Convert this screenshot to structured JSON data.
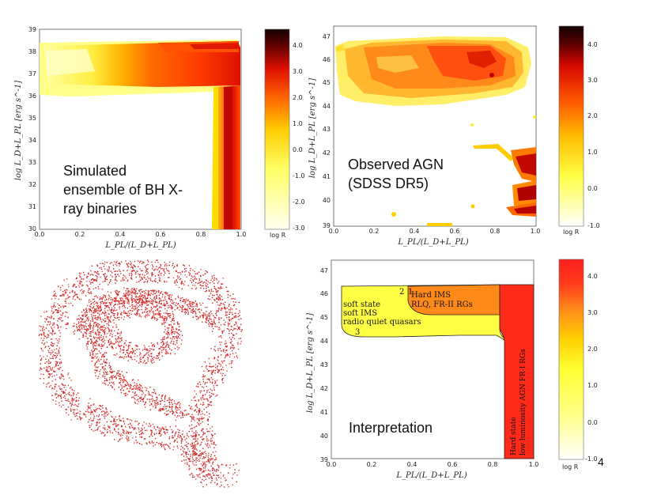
{
  "panels": {
    "top_left": {
      "annotation": [
        "Simulated",
        "ensemble of BH X-",
        "ray binaries"
      ],
      "xlabel": "L_PL/(L_D+L_PL)",
      "ylabel": "log L_D+L_PL [erg s^-1]",
      "colorbar_label": "log R"
    },
    "top_right": {
      "annotation": [
        "Observed AGN",
        "(SDSS DR5)"
      ],
      "xlabel": "L_PL/(L_D+L_PL)",
      "ylabel": "log L_D+L_PL [erg s^-1]",
      "colorbar_label": "log R"
    },
    "bottom_right": {
      "annotation": "Interpretation",
      "region_labels": {
        "hard": [
          "Hard IMS",
          "RLQ, FR-II RGs"
        ],
        "soft": [
          "soft state",
          "soft IMS",
          "radio quiet quasars"
        ],
        "vertical": [
          "Hard state",
          "low luminosity AGN FR-I RGs"
        ],
        "markers": [
          "2",
          "1",
          "3"
        ]
      },
      "xlabel": "L_PL/(L_D+L_PL)",
      "ylabel": "log L_D+L_PL [erg s^-1]",
      "colorbar_label": "log R"
    },
    "page_number": "4"
  },
  "chart_data": [
    {
      "type": "heatmap",
      "name": "top_left",
      "x_ticks": [
        "0.0",
        "0.2",
        "0.4",
        "0.6",
        "0.8",
        "1.0"
      ],
      "y_ticks": [
        "30",
        "31",
        "32",
        "33",
        "34",
        "35",
        "36",
        "37",
        "38",
        "39"
      ],
      "xlim": [
        0,
        1
      ],
      "ylim": [
        30,
        39
      ],
      "colorbar_ticks": [
        "4.0",
        "3.0",
        "2.0",
        "1.0",
        "0.0",
        "-1.0",
        "-2.0",
        "-3.0"
      ],
      "colorbar_range": [
        -3.0,
        4.5
      ],
      "colors": {
        "low": "#ffffe0",
        "mid": "#ffee00",
        "high": "#ff2200",
        "max": "#1a0000"
      }
    },
    {
      "type": "heatmap",
      "name": "top_right",
      "x_ticks": [
        "0.0",
        "0.2",
        "0.4",
        "0.6",
        "0.8",
        "1.0"
      ],
      "y_ticks": [
        "39",
        "40",
        "41",
        "42",
        "43",
        "44",
        "45",
        "46",
        "47"
      ],
      "xlim": [
        0,
        1
      ],
      "ylim": [
        39,
        47.3
      ],
      "colorbar_ticks": [
        "4.0",
        "3.0",
        "2.0",
        "1.0",
        "0.0",
        "-1.0"
      ],
      "colorbar_range": [
        -1.0,
        4.5
      ]
    },
    {
      "type": "heatmap",
      "name": "bottom_right",
      "x_ticks": [
        "0.0",
        "0.2",
        "0.4",
        "0.6",
        "0.8",
        "1.0"
      ],
      "y_ticks": [
        "39",
        "40",
        "41",
        "42",
        "43",
        "44",
        "45",
        "46",
        "47"
      ],
      "xlim": [
        0,
        1
      ],
      "ylim": [
        39,
        47.4
      ],
      "colorbar_ticks": [
        "4.0",
        "3.0",
        "2.0",
        "1.0",
        "0.0",
        "-1.0"
      ],
      "colorbar_range": [
        -1.0,
        4.5
      ],
      "colors": {
        "soft": "#ffff44",
        "hard_ims": "#ff8a1a",
        "hard_state": "#ff2a1a"
      }
    }
  ]
}
